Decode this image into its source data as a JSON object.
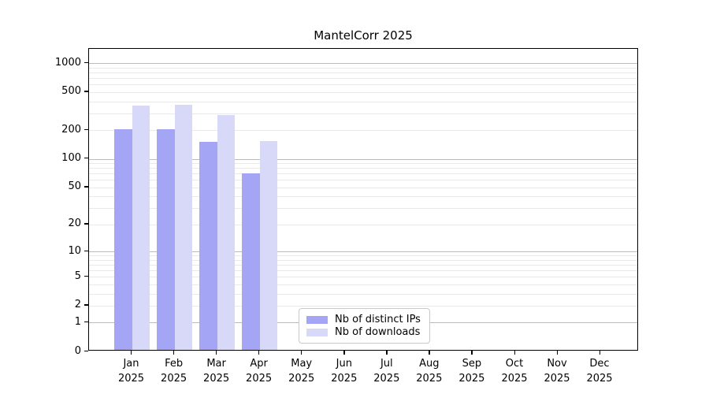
{
  "title": "MantelCorr 2025",
  "chart_data": {
    "type": "bar",
    "title": "MantelCorr 2025",
    "xlabel": "",
    "ylabel": "",
    "y_scale": "log10(1+y)",
    "ylim": [
      0,
      1410
    ],
    "grid": "on",
    "legend_position": "lower center-left inside plot",
    "y_ticks": [
      0,
      1,
      2,
      5,
      10,
      20,
      50,
      100,
      200,
      500,
      1000
    ],
    "y_major_gridlines": [
      1,
      10,
      100,
      1000
    ],
    "categories": [
      "Jan 2025",
      "Feb 2025",
      "Mar 2025",
      "Apr 2025",
      "May 2025",
      "Jun 2025",
      "Jul 2025",
      "Aug 2025",
      "Sep 2025",
      "Oct 2025",
      "Nov 2025",
      "Dec 2025"
    ],
    "series": [
      {
        "name": "Nb of distinct IPs",
        "color": "#a5a5f5",
        "values": [
          196,
          198,
          145,
          68,
          null,
          null,
          null,
          null,
          null,
          null,
          null,
          null
        ]
      },
      {
        "name": "Nb of downloads",
        "color": "#d8d8f9",
        "values": [
          350,
          353,
          276,
          149,
          null,
          null,
          null,
          null,
          null,
          null,
          null,
          null
        ]
      }
    ],
    "colors": {
      "frame": "#000000",
      "grid_major": "#bbbbbb",
      "grid_minor": "#e9e9e9",
      "background": "#ffffff"
    }
  }
}
